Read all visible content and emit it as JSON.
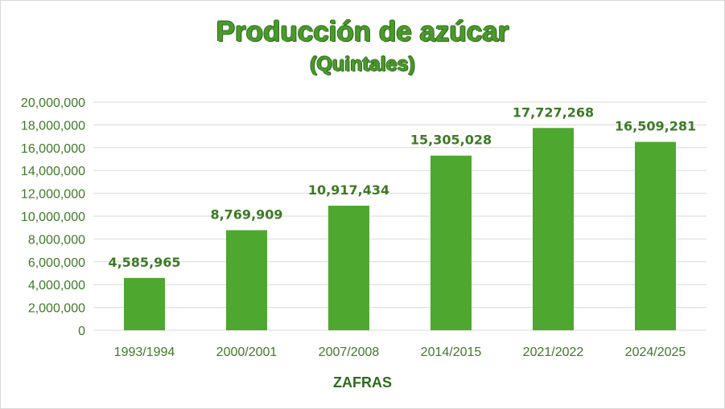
{
  "chart_data": {
    "type": "bar",
    "title": "Producción de azúcar",
    "subtitle": "(Quintales)",
    "xlabel": "ZAFRAS",
    "ylabel": "",
    "categories": [
      "1993/1994",
      "2000/2001",
      "2007/2008",
      "2014/2015",
      "2021/2022",
      "2024/2025"
    ],
    "values": [
      4585965,
      8769909,
      10917434,
      15305028,
      17727268,
      16509281
    ],
    "data_labels": [
      "4,585,965",
      "8,769,909",
      "10,917,434",
      "15,305,028",
      "17,727,268",
      "16,509,281"
    ],
    "ylim": [
      0,
      20000000
    ],
    "yticks": [
      "0",
      "2,000,000",
      "4,000,000",
      "6,000,000",
      "8,000,000",
      "10,000,000",
      "12,000,000",
      "14,000,000",
      "16,000,000",
      "18,000,000",
      "20,000,000"
    ],
    "grid": true,
    "legend": "none",
    "bar_color": "#4ea72e",
    "gridline_color": "#d9d9d9"
  }
}
